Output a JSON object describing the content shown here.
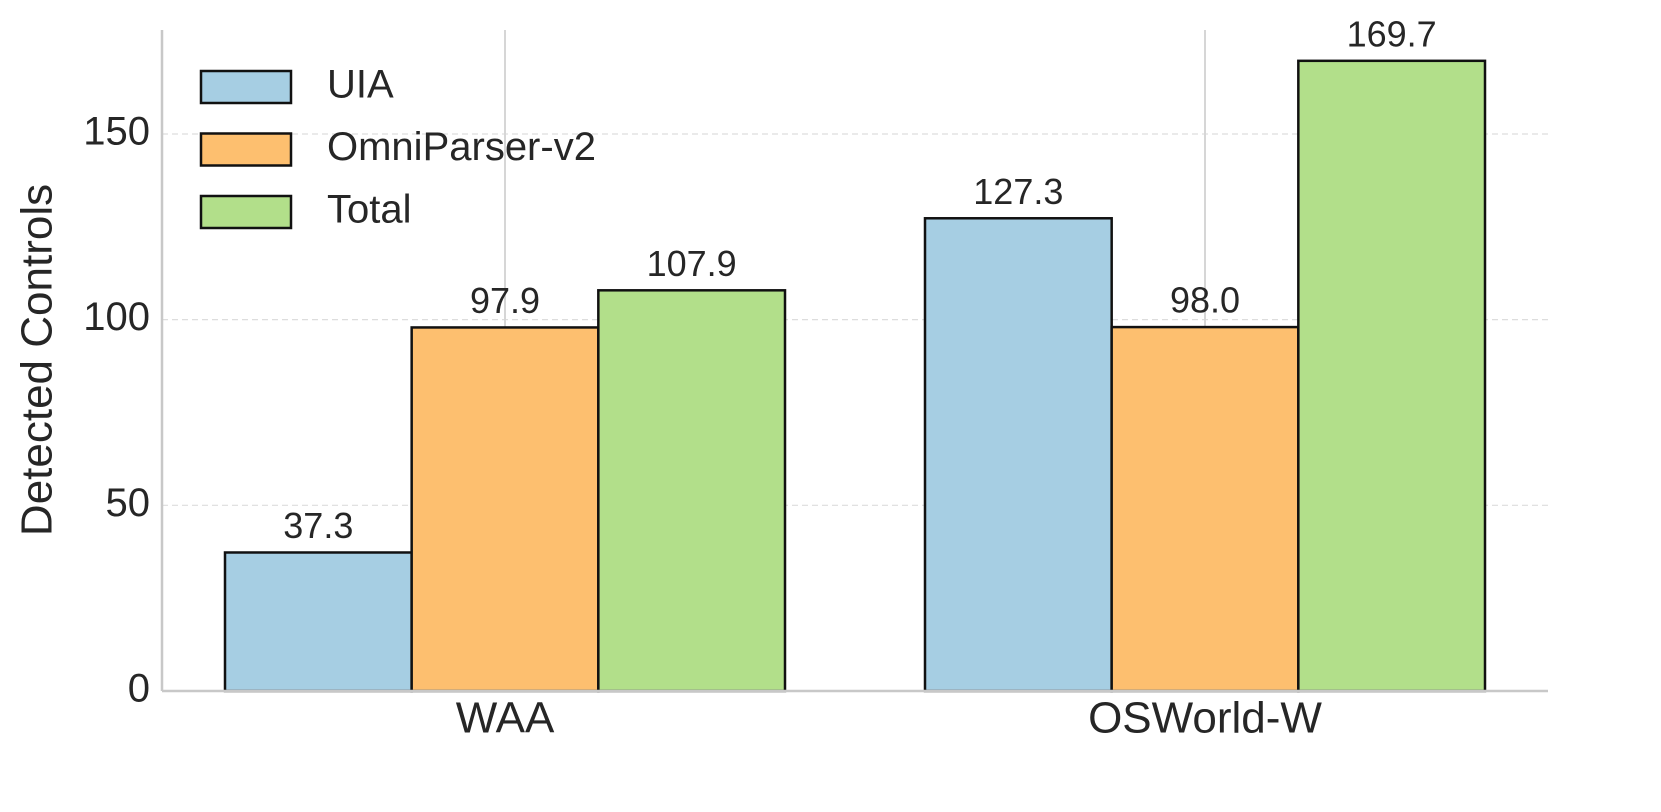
{
  "chart_data": {
    "type": "bar",
    "ylabel": "Detected Controls",
    "categories": [
      "WAA",
      "OSWorld-W"
    ],
    "series": [
      {
        "name": "UIA",
        "color": "#a6cee3",
        "values": [
          37.3,
          127.3
        ]
      },
      {
        "name": "OmniParser-v2",
        "color": "#fdbf6f",
        "values": [
          97.9,
          98.0
        ],
        "value_labels": [
          "97.9",
          "98.0"
        ]
      },
      {
        "name": "Total",
        "color": "#b2df8a",
        "values": [
          107.9,
          169.7
        ]
      }
    ],
    "ylim": [
      0,
      178
    ],
    "yticks": [
      0,
      50,
      100,
      150
    ],
    "grid": true,
    "legend": "upper left"
  }
}
